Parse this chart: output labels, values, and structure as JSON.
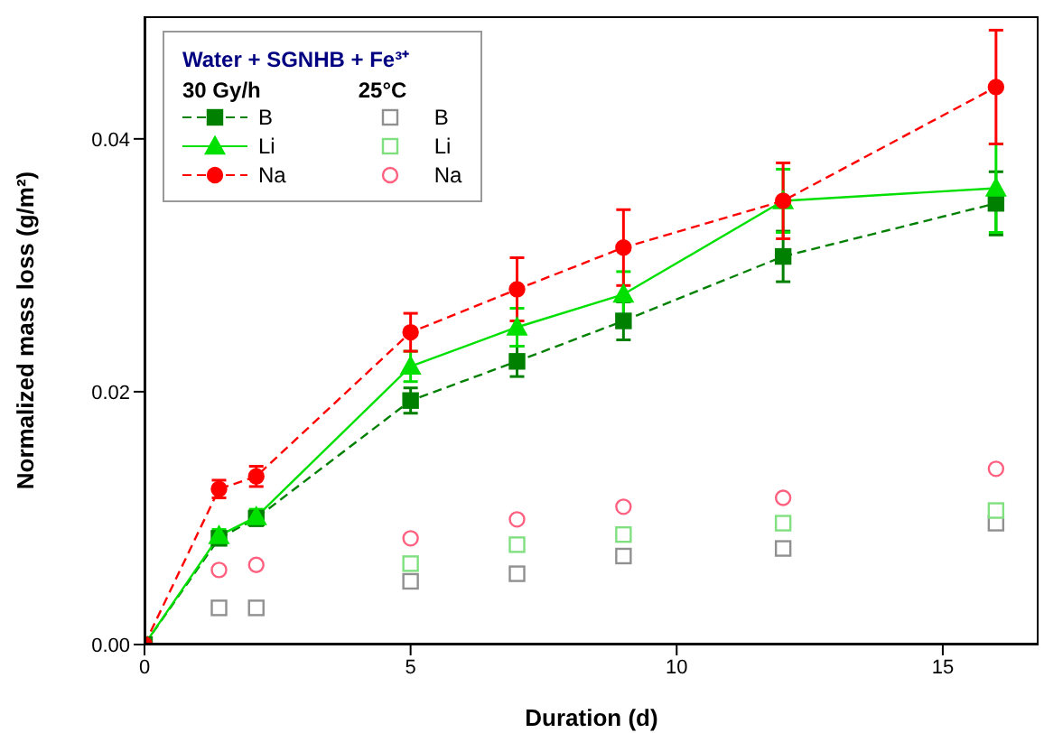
{
  "chart_data": {
    "type": "line",
    "xlabel": "Duration (d)",
    "ylabel": "Normalized mass loss (g/m²)",
    "legend_title": "Water + SGNHB + Fe³⁺",
    "annotations": [
      "30 Gy/h",
      "25°C"
    ],
    "legend": "top left",
    "xlim": [
      0,
      16.8
    ],
    "xticks": [
      0,
      5,
      10,
      15
    ],
    "ylim": [
      0,
      0.0497
    ],
    "yticks": [
      {
        "value": 0,
        "label": "0.00"
      },
      {
        "value": 0.02,
        "label": "0.02"
      },
      {
        "value": 0.04,
        "label": "0.04"
      }
    ],
    "x": [
      0,
      1.4,
      2.1,
      5,
      7,
      9,
      12,
      16
    ],
    "series": [
      {
        "name": "B",
        "color": "#008000",
        "marker": "square",
        "line_style": "dashed",
        "values": [
          0,
          0.0084,
          0.01,
          0.0193,
          0.0224,
          0.0256,
          0.0307,
          0.0349
        ],
        "errors": [
          null,
          0.0005,
          0.0006,
          0.001,
          0.0012,
          0.0015,
          0.002,
          0.0025
        ]
      },
      {
        "name": "Li",
        "color": "#00e000",
        "marker": "triangle",
        "line_style": "solid",
        "values": [
          0,
          0.0086,
          0.0101,
          0.022,
          0.0251,
          0.0277,
          0.0351,
          0.0361
        ],
        "errors": [
          null,
          0.0005,
          0.0006,
          0.0012,
          0.0015,
          0.0018,
          0.0025,
          0.0035
        ]
      },
      {
        "name": "Na",
        "color": "#ff0000",
        "marker": "circle",
        "line_style": "dashed",
        "values": [
          0,
          0.0123,
          0.0133,
          0.0247,
          0.0281,
          0.0314,
          0.0351,
          0.0441
        ],
        "errors": [
          null,
          0.0007,
          0.0008,
          0.0015,
          0.0025,
          0.003,
          0.003,
          0.0045
        ]
      },
      {
        "name": "B",
        "type": "scatter",
        "color": "#909090",
        "marker": "square",
        "x": [
          1.4,
          2.1,
          5,
          7,
          9,
          12,
          16
        ],
        "values": [
          0.0029,
          0.0029,
          0.005,
          0.0056,
          0.007,
          0.0076,
          0.0096
        ]
      },
      {
        "name": "Li",
        "type": "scatter",
        "color": "#80e080",
        "marker": "square",
        "x": [
          5,
          7,
          9,
          12,
          16
        ],
        "values": [
          0.0064,
          0.0079,
          0.0087,
          0.0096,
          0.0106
        ]
      },
      {
        "name": "Na",
        "type": "scatter",
        "color": "#ff6080",
        "marker": "circle",
        "x": [
          1.4,
          2.1,
          5,
          7,
          9,
          12,
          16
        ],
        "values": [
          0.0059,
          0.0063,
          0.0084,
          0.0099,
          0.0109,
          0.0116,
          0.0139
        ]
      }
    ]
  }
}
